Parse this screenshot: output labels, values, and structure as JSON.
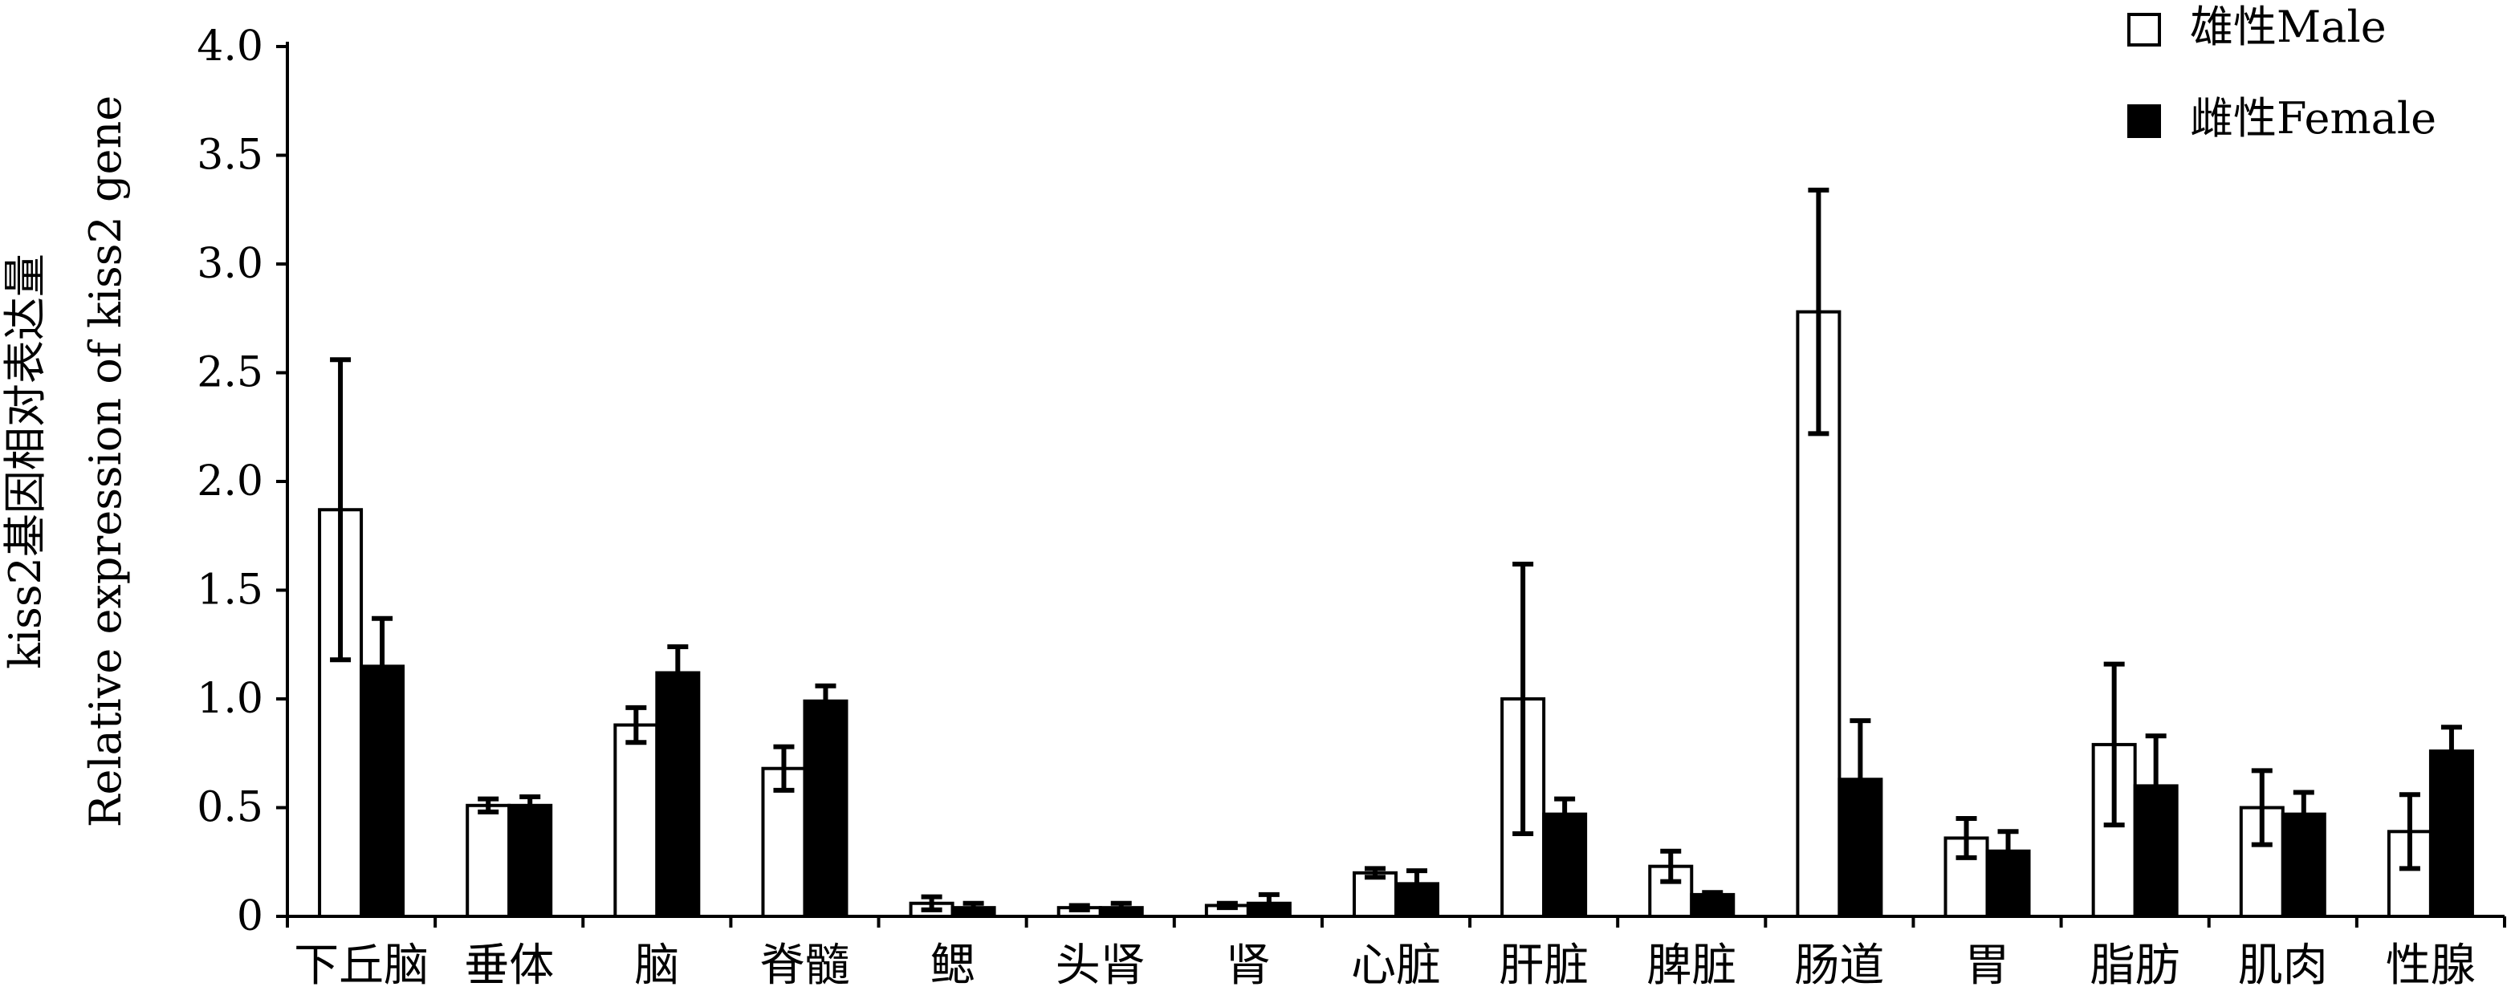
{
  "chart_data": {
    "type": "bar",
    "title": "",
    "xlabel": "",
    "ylabel_line1": "kiss2基因相对表达量",
    "ylabel_line2": "Relative expression of kiss2 gene",
    "ylim": [
      0,
      4.0
    ],
    "yticks": [
      "0",
      "0.5",
      "1.0",
      "1.5",
      "2.0",
      "2.5",
      "3.0",
      "3.5",
      "4.0"
    ],
    "grid": false,
    "legend_position": "top-right",
    "categories": [
      "下丘脑",
      "垂体",
      "脑",
      "脊髓",
      "鳃",
      "头肾",
      "肾",
      "心脏",
      "肝脏",
      "脾脏",
      "肠道",
      "胃",
      "脂肪",
      "肌肉",
      "性腺"
    ],
    "series": [
      {
        "name": "雄性Male",
        "fill": "#ffffff",
        "values": [
          1.87,
          0.51,
          0.88,
          0.68,
          0.06,
          0.04,
          0.05,
          0.2,
          1.0,
          0.23,
          2.78,
          0.36,
          0.79,
          0.5,
          0.39
        ],
        "errors": [
          0.69,
          0.03,
          0.08,
          0.1,
          0.03,
          0.01,
          0.01,
          0.02,
          0.62,
          0.07,
          0.56,
          0.09,
          0.37,
          0.17,
          0.17
        ]
      },
      {
        "name": "雌性Female",
        "fill": "#000000",
        "values": [
          1.15,
          0.51,
          1.12,
          0.99,
          0.04,
          0.04,
          0.06,
          0.15,
          0.47,
          0.1,
          0.63,
          0.3,
          0.6,
          0.47,
          0.76
        ],
        "errors": [
          0.22,
          0.04,
          0.12,
          0.07,
          0.02,
          0.02,
          0.04,
          0.06,
          0.07,
          0.01,
          0.27,
          0.09,
          0.23,
          0.1,
          0.11
        ]
      }
    ]
  }
}
